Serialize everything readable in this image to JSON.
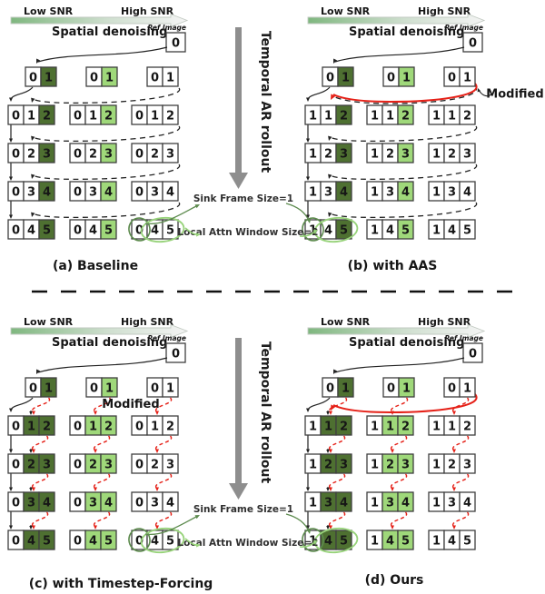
{
  "labels": {
    "low_snr": "Low SNR",
    "high_snr": "High SNR",
    "spatial_denoising": "Spatial denoising",
    "ref_image": "Ref Image",
    "ref_value": "0",
    "temporal_rollout": "Temporal AR rollout",
    "sink_frame": "Sink Frame Size=1",
    "local_attn": "Local Attn Window Size=2",
    "modified": "Modified"
  },
  "colors": {
    "dark_green": "#4e7031",
    "light_green": "#9fd87a",
    "red": "#e52017",
    "ink": "#222222",
    "arrow_gray": "#8e8e8e",
    "spatial_green": "#8fcc85",
    "annot_green_dark": "#5d8b4e",
    "annot_green_light": "#98d37b",
    "cell_border": "#3f3f3f",
    "grad_start": "#7fb77f",
    "grad_mid": "#cfdfcf",
    "grad_end": "#f4f4f4"
  },
  "panels": [
    {
      "key": "a",
      "caption": "(a) Baseline",
      "aas": false,
      "timestep_forcing": false,
      "sink_group": "right",
      "modified_label_pos": null,
      "rows": [
        [
          "0",
          "1"
        ],
        [
          "0",
          "1",
          "2"
        ],
        [
          "0",
          "2",
          "3"
        ],
        [
          "0",
          "3",
          "4"
        ],
        [
          "0",
          "4",
          "5"
        ]
      ]
    },
    {
      "key": "b",
      "caption": "(b) with AAS",
      "aas": true,
      "timestep_forcing": false,
      "sink_group": "left",
      "modified_label_pos": "right",
      "rows": [
        [
          "0",
          "1"
        ],
        [
          "1",
          "1",
          "2"
        ],
        [
          "1",
          "2",
          "3"
        ],
        [
          "1",
          "3",
          "4"
        ],
        [
          "1",
          "4",
          "5"
        ]
      ]
    },
    {
      "key": "c",
      "caption": "(c) with Timestep-Forcing",
      "aas": false,
      "timestep_forcing": true,
      "sink_group": "right",
      "modified_label_pos": "middle",
      "rows": [
        [
          "0",
          "1"
        ],
        [
          "0",
          "1",
          "2"
        ],
        [
          "0",
          "2",
          "3"
        ],
        [
          "0",
          "3",
          "4"
        ],
        [
          "0",
          "4",
          "5"
        ]
      ]
    },
    {
      "key": "d",
      "caption": "(d) Ours",
      "aas": true,
      "timestep_forcing": true,
      "sink_group": "left",
      "modified_label_pos": null,
      "rows": [
        [
          "0",
          "1"
        ],
        [
          "1",
          "1",
          "2"
        ],
        [
          "1",
          "2",
          "3"
        ],
        [
          "1",
          "3",
          "4"
        ],
        [
          "1",
          "4",
          "5"
        ]
      ]
    }
  ]
}
